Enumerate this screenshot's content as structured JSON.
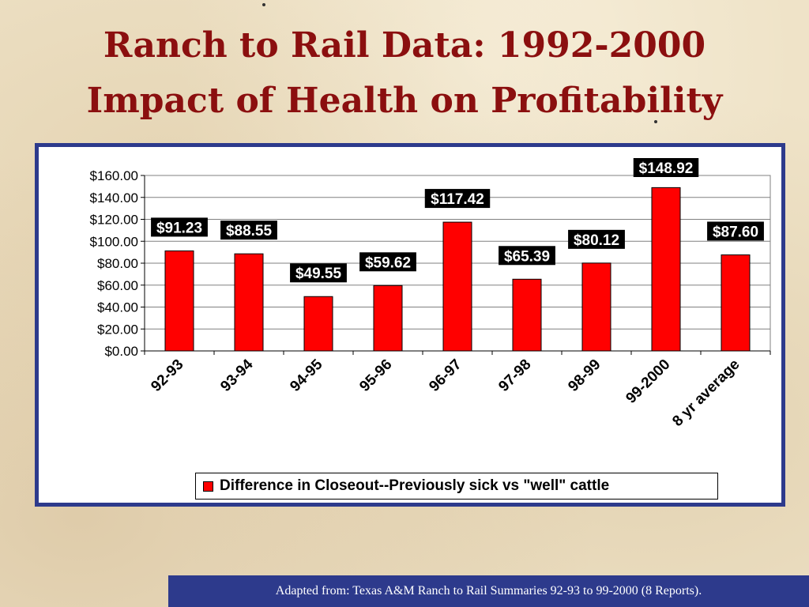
{
  "slide": {
    "title_line1": "Ranch to Rail Data:  1992-2000",
    "title_line2": "Impact of Health on Profitability",
    "source": "Adapted from:  Texas A&M Ranch to Rail Summaries 92-93 to 99-2000 (8 Reports)."
  },
  "colors": {
    "title": "#8b0f0f",
    "frame": "#2d3a8c",
    "bar": "#ff0000",
    "label_bg": "#000000"
  },
  "chart_data": {
    "type": "bar",
    "categories": [
      "92-93",
      "93-94",
      "94-95",
      "95-96",
      "96-97",
      "97-98",
      "98-99",
      "99-2000",
      "8 yr average"
    ],
    "series": [
      {
        "name": "Difference in Closeout--Previously sick vs \"well\" cattle",
        "values": [
          91.23,
          88.55,
          49.55,
          59.62,
          117.42,
          65.39,
          80.12,
          148.92,
          87.6
        ]
      }
    ],
    "data_labels": [
      "$91.23",
      "$88.55",
      "$49.55",
      "$59.62",
      "$117.42",
      "$65.39",
      "$80.12",
      "$148.92",
      "$87.60"
    ],
    "y_ticks": [
      "$0.00",
      "$20.00",
      "$40.00",
      "$60.00",
      "$80.00",
      "$100.00",
      "$120.00",
      "$140.00",
      "$160.00"
    ],
    "ylim": [
      0,
      160
    ],
    "grid": true,
    "legend": "bottom"
  }
}
